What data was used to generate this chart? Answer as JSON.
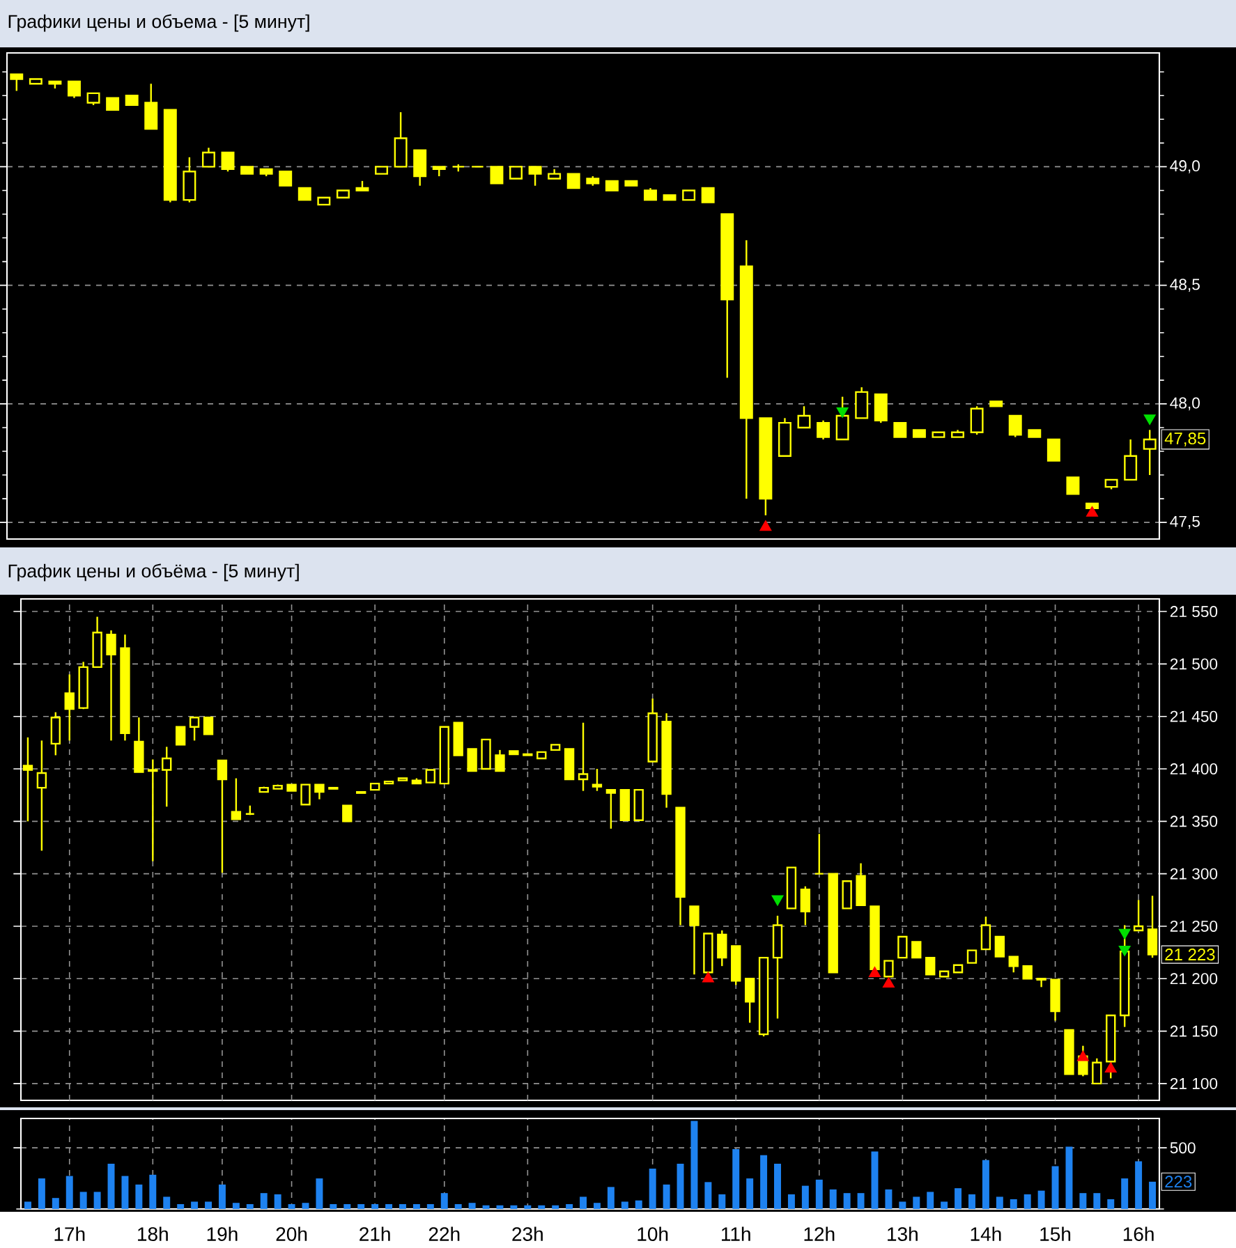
{
  "chart_data": [
    {
      "type": "candlestick",
      "title": "Графики цены и объема - [5 минут]",
      "color": "#ffff00",
      "categories": [
        null,
        null,
        null,
        null,
        null,
        null,
        null,
        null,
        null,
        null,
        null,
        null,
        null,
        null,
        null,
        null,
        null,
        null,
        null,
        null,
        null,
        null,
        null,
        null,
        null,
        null,
        null,
        null,
        null,
        null,
        null,
        null,
        null,
        null,
        null,
        null,
        null,
        null,
        null,
        null,
        null,
        null,
        null,
        null,
        null,
        null,
        null,
        null,
        null,
        null,
        null,
        null,
        null,
        null,
        null,
        null,
        null,
        null,
        null,
        null
      ],
      "ohlc": [
        [
          49.39,
          49.39,
          49.32,
          49.37
        ],
        [
          49.35,
          49.37,
          49.35,
          49.37
        ],
        [
          49.36,
          49.36,
          49.33,
          49.35
        ],
        [
          49.36,
          49.36,
          49.29,
          49.3
        ],
        [
          49.27,
          49.31,
          49.26,
          49.31
        ],
        [
          49.29,
          49.29,
          49.24,
          49.24
        ],
        [
          49.3,
          49.3,
          49.26,
          49.26
        ],
        [
          49.27,
          49.35,
          49.16,
          49.16
        ],
        [
          49.24,
          49.24,
          48.85,
          48.86
        ],
        [
          48.86,
          49.04,
          48.85,
          48.98
        ],
        [
          49.0,
          49.08,
          49.0,
          49.06
        ],
        [
          49.06,
          49.06,
          48.98,
          48.99
        ],
        [
          49.0,
          49.0,
          48.97,
          48.97
        ],
        [
          48.99,
          48.99,
          48.96,
          48.97
        ],
        [
          48.98,
          48.98,
          48.92,
          48.92
        ],
        [
          48.91,
          48.91,
          48.86,
          48.86
        ],
        [
          48.84,
          48.87,
          48.84,
          48.87
        ],
        [
          48.87,
          48.9,
          48.87,
          48.9
        ],
        [
          48.91,
          48.94,
          48.9,
          48.9
        ],
        [
          48.97,
          49.0,
          48.97,
          49.0
        ],
        [
          49.0,
          49.23,
          49.0,
          49.12
        ],
        [
          49.07,
          49.07,
          48.92,
          48.96
        ],
        [
          49.0,
          49.0,
          48.96,
          48.99
        ],
        [
          49.0,
          49.01,
          48.98,
          49.0
        ],
        [
          49.0,
          49.0,
          49.0,
          49.0
        ],
        [
          49.0,
          49.0,
          48.93,
          48.93
        ],
        [
          48.95,
          49.0,
          48.95,
          49.0
        ],
        [
          49.0,
          49.0,
          48.92,
          48.97
        ],
        [
          48.95,
          48.99,
          48.95,
          48.97
        ],
        [
          48.97,
          48.97,
          48.91,
          48.91
        ],
        [
          48.95,
          48.96,
          48.92,
          48.93
        ],
        [
          48.94,
          48.94,
          48.9,
          48.9
        ],
        [
          48.94,
          48.94,
          48.92,
          48.92
        ],
        [
          48.9,
          48.91,
          48.86,
          48.86
        ],
        [
          48.88,
          48.88,
          48.86,
          48.86
        ],
        [
          48.86,
          48.9,
          48.86,
          48.9
        ],
        [
          48.91,
          48.91,
          48.85,
          48.85
        ],
        [
          48.8,
          48.8,
          48.11,
          48.44
        ],
        [
          48.58,
          48.69,
          47.6,
          47.94
        ],
        [
          47.94,
          47.94,
          47.53,
          47.6
        ],
        [
          47.78,
          47.94,
          47.78,
          47.92
        ],
        [
          47.9,
          47.99,
          47.9,
          47.95
        ],
        [
          47.92,
          47.93,
          47.85,
          47.86
        ],
        [
          47.85,
          48.03,
          47.85,
          47.95
        ],
        [
          47.94,
          48.07,
          47.94,
          48.05
        ],
        [
          48.04,
          48.04,
          47.92,
          47.93
        ],
        [
          47.92,
          47.92,
          47.86,
          47.86
        ],
        [
          47.89,
          47.89,
          47.86,
          47.86
        ],
        [
          47.86,
          47.88,
          47.86,
          47.88
        ],
        [
          47.86,
          47.89,
          47.86,
          47.88
        ],
        [
          47.88,
          47.99,
          47.87,
          47.98
        ],
        [
          48.01,
          48.01,
          47.99,
          47.99
        ],
        [
          47.95,
          47.95,
          47.86,
          47.87
        ],
        [
          47.89,
          47.89,
          47.86,
          47.86
        ],
        [
          47.85,
          47.85,
          47.76,
          47.76
        ],
        [
          47.69,
          47.69,
          47.62,
          47.62
        ],
        [
          47.58,
          47.58,
          47.56,
          47.56
        ],
        [
          47.65,
          47.68,
          47.64,
          47.68
        ],
        [
          47.68,
          47.85,
          47.68,
          47.78
        ],
        [
          47.81,
          47.89,
          47.7,
          47.85
        ]
      ],
      "series": [
        {
          "type": "scatter",
          "color": "#ff0000",
          "marker": "triangle",
          "values": [
            null,
            null,
            null,
            null,
            null,
            null,
            null,
            null,
            null,
            null,
            null,
            null,
            null,
            null,
            null,
            null,
            null,
            null,
            null,
            null,
            null,
            null,
            null,
            null,
            null,
            null,
            null,
            null,
            null,
            null,
            null,
            null,
            null,
            null,
            null,
            null,
            null,
            null,
            null,
            47.48,
            null,
            null,
            null,
            null,
            null,
            null,
            null,
            null,
            null,
            null,
            null,
            null,
            null,
            null,
            null,
            null,
            47.54,
            null,
            null,
            null
          ]
        },
        {
          "type": "scatter",
          "color": "#00e000",
          "marker": "triangle",
          "values": [
            null,
            null,
            null,
            null,
            null,
            null,
            null,
            null,
            null,
            null,
            null,
            null,
            null,
            null,
            null,
            null,
            null,
            null,
            null,
            null,
            null,
            null,
            null,
            null,
            null,
            null,
            null,
            null,
            null,
            null,
            null,
            null,
            null,
            null,
            null,
            null,
            null,
            null,
            null,
            null,
            null,
            null,
            null,
            47.97,
            null,
            null,
            null,
            null,
            null,
            null,
            null,
            null,
            null,
            null,
            null,
            null,
            null,
            null,
            null,
            47.94
          ]
        }
      ],
      "ylim": [
        47.43,
        49.48
      ],
      "yticks": [
        {
          "value": 47.5,
          "label": "47,5"
        },
        {
          "value": 47.6,
          "label": null
        },
        {
          "value": 47.7,
          "label": null
        },
        {
          "value": 47.8,
          "label": null
        },
        {
          "value": 47.9,
          "label": null
        },
        {
          "value": 48,
          "label": "48,0"
        },
        {
          "value": 48.1,
          "label": null
        },
        {
          "value": 48.2,
          "label": null
        },
        {
          "value": 48.3,
          "label": null
        },
        {
          "value": 48.4,
          "label": null
        },
        {
          "value": 48.5,
          "label": "48,5"
        },
        {
          "value": 48.6,
          "label": null
        },
        {
          "value": 48.7,
          "label": null
        },
        {
          "value": 48.8,
          "label": null
        },
        {
          "value": 48.9,
          "label": null
        },
        {
          "value": 49,
          "label": "49,0"
        },
        {
          "value": 49.1,
          "label": null
        },
        {
          "value": 49.2,
          "label": null
        },
        {
          "value": 49.3,
          "label": null
        },
        {
          "value": 49.4,
          "label": null
        }
      ],
      "grid": "y",
      "tick_labels": "y",
      "annotations": [
        "47,85"
      ]
    },
    {
      "type": "candlestick",
      "title": "График цены и объёма - [5 минут]",
      "color": "#ffff00",
      "categories": [
        null,
        null,
        null,
        null,
        null,
        null,
        null,
        null,
        null,
        null,
        null,
        null,
        null,
        null,
        null,
        null,
        null,
        null,
        null,
        null,
        null,
        null,
        null,
        null,
        null,
        null,
        null,
        null,
        null,
        null,
        null,
        null,
        null,
        null,
        null,
        null,
        null,
        null,
        null,
        null,
        null,
        null,
        null,
        null,
        null,
        null,
        null,
        null,
        null,
        null,
        null,
        null,
        null,
        null,
        null,
        null,
        null,
        null,
        null,
        null,
        null,
        null,
        null,
        null,
        null,
        null,
        null,
        null,
        null,
        null,
        null,
        null,
        null,
        null,
        null,
        null,
        null,
        null,
        null,
        null,
        null,
        null
      ],
      "ohlc": [
        [
          21403,
          21430,
          21350,
          21399
        ],
        [
          21382,
          21427,
          21322,
          21396
        ],
        [
          21424,
          21454,
          21413,
          21449
        ],
        [
          21472,
          21490,
          21427,
          21457
        ],
        [
          21458,
          21502,
          21457,
          21497
        ],
        [
          21497,
          21545,
          21497,
          21530
        ],
        [
          21528,
          21532,
          21427,
          21509
        ],
        [
          21515,
          21528,
          21427,
          21434
        ],
        [
          21426,
          21449,
          21397,
          21397
        ],
        [
          21399,
          21409,
          21312,
          21398
        ],
        [
          21399,
          21421,
          21364,
          21410
        ],
        [
          21440,
          21440,
          21423,
          21423
        ],
        [
          21440,
          21449,
          21427,
          21449
        ],
        [
          21449,
          21449,
          21433,
          21433
        ],
        [
          21408,
          21408,
          21301,
          21390
        ],
        [
          21359,
          21391,
          21352,
          21352
        ],
        [
          21357,
          21365,
          21356,
          21357
        ],
        [
          21378,
          21383,
          21378,
          21382
        ],
        [
          21381,
          21385,
          21381,
          21384
        ],
        [
          21385,
          21385,
          21379,
          21379
        ],
        [
          21366,
          21385,
          21366,
          21385
        ],
        [
          21385,
          21385,
          21371,
          21378
        ],
        [
          21382,
          21382,
          21381,
          21381
        ],
        [
          21365,
          21365,
          21350,
          21350
        ],
        [
          21378,
          21378,
          21377,
          21377
        ],
        [
          21380,
          21386,
          21380,
          21386
        ],
        [
          21386,
          21388,
          21386,
          21388
        ],
        [
          21389,
          21391,
          21389,
          21391
        ],
        [
          21389,
          21391,
          21386,
          21386
        ],
        [
          21387,
          21399,
          21387,
          21399
        ],
        [
          21386,
          21440,
          21386,
          21440
        ],
        [
          21444,
          21444,
          21413,
          21413
        ],
        [
          21419,
          21419,
          21398,
          21398
        ],
        [
          21400,
          21428,
          21400,
          21428
        ],
        [
          21413,
          21418,
          21398,
          21398
        ],
        [
          21417,
          21417,
          21414,
          21414
        ],
        [
          21414,
          21414,
          21413,
          21413
        ],
        [
          21410,
          21416,
          21410,
          21416
        ],
        [
          21418,
          21423,
          21418,
          21423
        ],
        [
          21419,
          21419,
          21390,
          21390
        ],
        [
          21390,
          21444,
          21379,
          21395
        ],
        [
          21385,
          21400,
          21379,
          21383
        ],
        [
          21380,
          21380,
          21343,
          21377
        ],
        [
          21380,
          21380,
          21351,
          21351
        ],
        [
          21351,
          21380,
          21351,
          21380
        ],
        [
          21407,
          21467,
          21407,
          21453
        ],
        [
          21445,
          21453,
          21363,
          21376
        ],
        [
          21363,
          21363,
          21251,
          21278
        ],
        [
          21269,
          21269,
          21204,
          21251
        ],
        [
          21206,
          21243,
          21206,
          21243
        ],
        [
          21242,
          21246,
          21212,
          21220
        ],
        [
          21231,
          21231,
          21194,
          21198
        ],
        [
          21200,
          21200,
          21158,
          21178
        ],
        [
          21147,
          21220,
          21145,
          21220
        ],
        [
          21220,
          21260,
          21162,
          21251
        ],
        [
          21267,
          21306,
          21267,
          21306
        ],
        [
          21285,
          21288,
          21251,
          21264
        ],
        [
          21300,
          21338,
          21300,
          21300
        ],
        [
          21300,
          21300,
          21206,
          21206
        ],
        [
          21267,
          21293,
          21267,
          21293
        ],
        [
          21298,
          21310,
          21270,
          21270
        ],
        [
          21269,
          21269,
          21209,
          21209
        ],
        [
          21202,
          21217,
          21202,
          21217
        ],
        [
          21220,
          21240,
          21220,
          21240
        ],
        [
          21235,
          21235,
          21220,
          21220
        ],
        [
          21220,
          21220,
          21204,
          21204
        ],
        [
          21202,
          21207,
          21202,
          21207
        ],
        [
          21206,
          21213,
          21206,
          21213
        ],
        [
          21215,
          21227,
          21215,
          21227
        ],
        [
          21228,
          21259,
          21228,
          21251
        ],
        [
          21240,
          21240,
          21221,
          21221
        ],
        [
          21221,
          21221,
          21206,
          21212
        ],
        [
          21212,
          21212,
          21200,
          21200
        ],
        [
          21200,
          21200,
          21192,
          21199
        ],
        [
          21199,
          21199,
          21160,
          21169
        ],
        [
          21151,
          21151,
          21109,
          21109
        ],
        [
          21126,
          21136,
          21107,
          21109
        ],
        [
          21100,
          21124,
          21100,
          21120
        ],
        [
          21121,
          21165,
          21105,
          21165
        ],
        [
          21165,
          21251,
          21154,
          21226
        ],
        [
          21246,
          21275,
          21246,
          21250
        ],
        [
          21247,
          21279,
          21220,
          21223
        ]
      ],
      "series": [
        {
          "type": "scatter",
          "color": "#ff0000",
          "marker": "triangle",
          "values": [
            null,
            null,
            null,
            null,
            null,
            null,
            null,
            null,
            null,
            null,
            null,
            null,
            null,
            null,
            null,
            null,
            null,
            null,
            null,
            null,
            null,
            null,
            null,
            null,
            null,
            null,
            null,
            null,
            null,
            null,
            null,
            null,
            null,
            null,
            null,
            null,
            null,
            null,
            null,
            null,
            null,
            null,
            null,
            null,
            null,
            null,
            null,
            null,
            null,
            21200,
            null,
            null,
            null,
            null,
            null,
            null,
            null,
            null,
            null,
            null,
            null,
            21205,
            21195,
            null,
            null,
            null,
            null,
            null,
            null,
            null,
            null,
            null,
            null,
            null,
            null,
            null,
            21125,
            null,
            21114,
            null,
            null,
            null
          ]
        },
        {
          "type": "scatter",
          "color": "#00e000",
          "marker": "triangle",
          "values": [
            null,
            null,
            null,
            null,
            null,
            null,
            null,
            null,
            null,
            null,
            null,
            null,
            null,
            null,
            null,
            null,
            null,
            null,
            null,
            null,
            null,
            null,
            null,
            null,
            null,
            null,
            null,
            null,
            null,
            null,
            null,
            null,
            null,
            null,
            null,
            null,
            null,
            null,
            null,
            null,
            null,
            null,
            null,
            null,
            null,
            null,
            null,
            null,
            null,
            null,
            null,
            null,
            null,
            null,
            21276,
            null,
            null,
            null,
            null,
            null,
            null,
            null,
            null,
            null,
            null,
            null,
            null,
            null,
            null,
            null,
            null,
            null,
            null,
            null,
            null,
            null,
            null,
            null,
            null,
            21244,
            null,
            null
          ]
        },
        {
          "type": "scatter",
          "color": "#00e000",
          "marker": "triangle",
          "values": [
            null,
            null,
            null,
            null,
            null,
            null,
            null,
            null,
            null,
            null,
            null,
            null,
            null,
            null,
            null,
            null,
            null,
            null,
            null,
            null,
            null,
            null,
            null,
            null,
            null,
            null,
            null,
            null,
            null,
            null,
            null,
            null,
            null,
            null,
            null,
            null,
            null,
            null,
            null,
            null,
            null,
            null,
            null,
            null,
            null,
            null,
            null,
            null,
            null,
            null,
            null,
            null,
            null,
            null,
            null,
            null,
            null,
            null,
            null,
            null,
            null,
            null,
            null,
            null,
            null,
            null,
            null,
            null,
            null,
            null,
            null,
            null,
            null,
            null,
            null,
            null,
            null,
            null,
            null,
            21228,
            null,
            null
          ]
        }
      ],
      "ylim": [
        21084,
        21562
      ],
      "yticks": [
        {
          "value": 21100,
          "label": "21 100"
        },
        {
          "value": 21150,
          "label": "21 150"
        },
        {
          "value": 21200,
          "label": "21 200"
        },
        {
          "value": 21250,
          "label": "21 250"
        },
        {
          "value": 21300,
          "label": "21 300"
        },
        {
          "value": 21350,
          "label": "21 350"
        },
        {
          "value": 21400,
          "label": "21 400"
        },
        {
          "value": 21450,
          "label": "21 450"
        },
        {
          "value": 21500,
          "label": "21 500"
        },
        {
          "value": 21550,
          "label": "21 550"
        }
      ],
      "grid": true,
      "tick_labels": "y",
      "annotations": [
        "21 223"
      ]
    },
    {
      "type": "bar",
      "color": "#1e82f0",
      "categories": [
        null,
        null,
        null,
        "17h",
        null,
        null,
        null,
        null,
        null,
        "18h",
        null,
        null,
        null,
        null,
        "19h",
        null,
        null,
        null,
        null,
        "20h",
        null,
        null,
        null,
        null,
        null,
        "21h",
        null,
        null,
        null,
        null,
        "22h",
        null,
        null,
        null,
        null,
        null,
        "23h",
        null,
        null,
        null,
        null,
        null,
        null,
        null,
        null,
        "10h",
        null,
        null,
        null,
        null,
        null,
        "11h",
        null,
        null,
        null,
        null,
        null,
        "12h",
        null,
        null,
        null,
        null,
        null,
        "13h",
        null,
        null,
        null,
        null,
        null,
        "14h",
        null,
        null,
        null,
        null,
        "15h",
        null,
        null,
        null,
        null,
        null,
        "16h",
        null
      ],
      "values": [
        60,
        250,
        90,
        270,
        140,
        140,
        370,
        270,
        200,
        280,
        100,
        40,
        60,
        60,
        200,
        50,
        40,
        130,
        120,
        40,
        50,
        250,
        40,
        40,
        40,
        40,
        40,
        40,
        40,
        40,
        130,
        40,
        50,
        30,
        30,
        30,
        30,
        30,
        30,
        40,
        100,
        50,
        180,
        60,
        70,
        330,
        200,
        370,
        720,
        220,
        120,
        490,
        250,
        440,
        370,
        120,
        190,
        240,
        160,
        130,
        130,
        470,
        160,
        60,
        100,
        140,
        60,
        170,
        120,
        400,
        100,
        80,
        120,
        150,
        350,
        510,
        130,
        130,
        80,
        250,
        390,
        223
      ],
      "ylim": [
        0,
        740
      ],
      "yticks": [
        {
          "value": 0,
          "label": null
        },
        {
          "value": 500,
          "label": "500"
        }
      ],
      "grid": true,
      "annotations": [
        "223"
      ]
    }
  ]
}
